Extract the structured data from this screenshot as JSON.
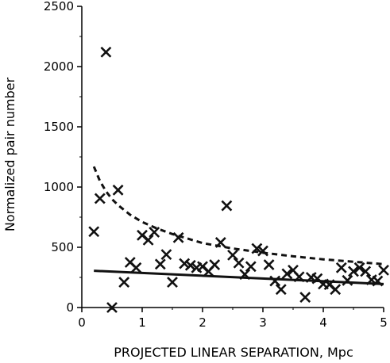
{
  "chart_data": {
    "type": "scatter",
    "title": "",
    "xlabel": "PROJECTED LINEAR SEPARATION, Mpc",
    "ylabel": "Normalized pair number",
    "xlim": [
      0,
      5
    ],
    "ylim": [
      0,
      2500
    ],
    "x_ticks": [
      "0",
      "1",
      "2",
      "3",
      "4",
      "5"
    ],
    "y_ticks": [
      "0",
      "500",
      "1000",
      "1500",
      "2000",
      "2500"
    ],
    "grid": false,
    "legend": "none",
    "marker": "x",
    "colors": {
      "points": "#111111",
      "lines": "#111111"
    },
    "points": [
      [
        0.2,
        630
      ],
      [
        0.3,
        905
      ],
      [
        0.4,
        2120
      ],
      [
        0.5,
        0
      ],
      [
        0.6,
        975
      ],
      [
        0.7,
        210
      ],
      [
        0.8,
        375
      ],
      [
        0.9,
        330
      ],
      [
        1.0,
        600
      ],
      [
        1.1,
        560
      ],
      [
        1.2,
        625
      ],
      [
        1.3,
        360
      ],
      [
        1.4,
        440
      ],
      [
        1.5,
        210
      ],
      [
        1.6,
        580
      ],
      [
        1.7,
        365
      ],
      [
        1.8,
        350
      ],
      [
        1.9,
        330
      ],
      [
        2.0,
        340
      ],
      [
        2.1,
        300
      ],
      [
        2.2,
        355
      ],
      [
        2.3,
        540
      ],
      [
        2.4,
        845
      ],
      [
        2.5,
        435
      ],
      [
        2.6,
        370
      ],
      [
        2.7,
        275
      ],
      [
        2.8,
        340
      ],
      [
        2.9,
        490
      ],
      [
        3.0,
        470
      ],
      [
        3.1,
        355
      ],
      [
        3.2,
        220
      ],
      [
        3.3,
        150
      ],
      [
        3.4,
        280
      ],
      [
        3.5,
        310
      ],
      [
        3.6,
        255
      ],
      [
        3.7,
        85
      ],
      [
        3.8,
        250
      ],
      [
        3.9,
        240
      ],
      [
        4.0,
        195
      ],
      [
        4.1,
        190
      ],
      [
        4.2,
        150
      ],
      [
        4.3,
        330
      ],
      [
        4.4,
        225
      ],
      [
        4.5,
        300
      ],
      [
        4.6,
        330
      ],
      [
        4.7,
        300
      ],
      [
        4.8,
        230
      ],
      [
        4.9,
        220
      ],
      [
        5.0,
        310
      ]
    ],
    "series": [
      {
        "style": "dashed",
        "x": [
          0.2,
          0.3,
          0.4,
          0.5,
          0.6,
          0.8,
          1.0,
          1.25,
          1.5,
          2.0,
          2.5,
          3.0,
          3.5,
          4.0,
          4.5,
          5.0
        ],
        "y": [
          1170,
          1050,
          965,
          900,
          850,
          770,
          710,
          655,
          610,
          535,
          490,
          455,
          425,
          400,
          380,
          360
        ]
      },
      {
        "style": "solid",
        "x": [
          0.2,
          5.0
        ],
        "y": [
          305,
          195
        ]
      }
    ]
  }
}
